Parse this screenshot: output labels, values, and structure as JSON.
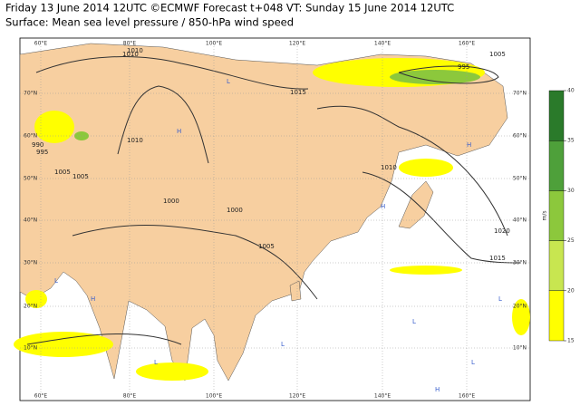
{
  "header": {
    "line1": "Friday 13 June 2014 12UTC ©ECMWF Forecast t+048 VT: Sunday 15 June 2014 12UTC",
    "line2": "Surface: Mean sea level pressure / 850-hPa wind speed"
  },
  "lon_labels": [
    "60°E",
    "80°E",
    "100°E",
    "120°E",
    "140°E",
    "160°E"
  ],
  "lat_labels": [
    "70°N",
    "60°N",
    "50°N",
    "40°N",
    "30°N",
    "20°N",
    "10°N"
  ],
  "colorbar": {
    "unit": "m/s",
    "ticks": [
      15,
      20,
      25,
      30,
      35,
      40
    ],
    "colors": [
      "#ffff00",
      "#c8e650",
      "#8cc83c",
      "#4ea03a",
      "#2a7a2a"
    ]
  },
  "isobar_labels": [
    "1010",
    "995",
    "1005",
    "1015",
    "990",
    "995",
    "1005",
    "1000",
    "1010",
    "1000",
    "1005",
    "1010",
    "1020",
    "1015",
    "1005",
    "1010"
  ],
  "pressure_centers": [
    "H",
    "L",
    "H",
    "L",
    "H",
    "L",
    "L",
    "H",
    "L",
    "H",
    "L",
    "L"
  ]
}
